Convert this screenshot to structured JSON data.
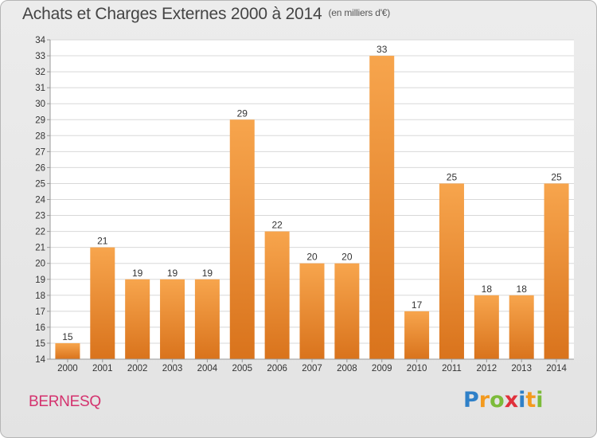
{
  "header": {
    "title": "Achats et Charges Externes 2000 à 2014",
    "subtitle": "(en milliers d'€)"
  },
  "commune": "BERNESQ",
  "logo": {
    "letters": [
      "P",
      "r",
      "o",
      "x",
      "i",
      "t",
      "i"
    ],
    "colors": [
      "#2f80c8",
      "#f39a1e",
      "#7cbb3a",
      "#e0303b",
      "#2f80c8",
      "#f39a1e",
      "#7cbb3a"
    ]
  },
  "chart_data": {
    "type": "bar",
    "title": "Achats et Charges Externes 2000 à 2014",
    "subtitle": "(en milliers d'€)",
    "categories": [
      "2000",
      "2001",
      "2002",
      "2003",
      "2004",
      "2005",
      "2006",
      "2007",
      "2008",
      "2009",
      "2010",
      "2011",
      "2012",
      "2013",
      "2014"
    ],
    "values": [
      15,
      21,
      19,
      19,
      19,
      29,
      22,
      20,
      20,
      33,
      17,
      25,
      18,
      18,
      25
    ],
    "ylim": [
      14,
      34
    ],
    "yticks": [
      14,
      15,
      16,
      17,
      18,
      19,
      20,
      21,
      22,
      23,
      24,
      25,
      26,
      27,
      28,
      29,
      30,
      31,
      32,
      33,
      34
    ],
    "grid": true,
    "bar_color_top": "#f7a54d",
    "bar_color_bottom": "#d9731c"
  }
}
